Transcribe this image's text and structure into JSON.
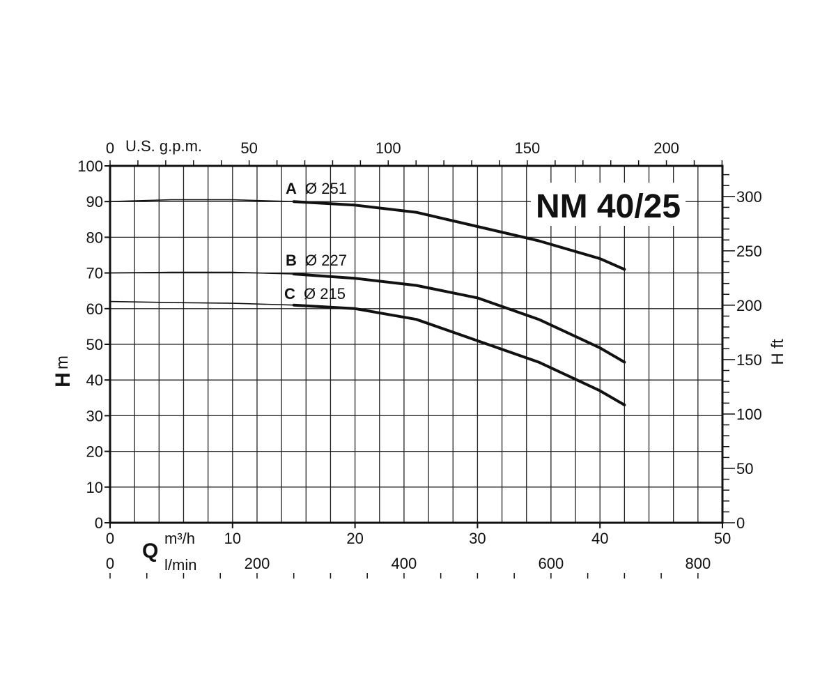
{
  "chart_data": {
    "type": "line",
    "title": "NM 40/25",
    "ylabel_main": "H",
    "ylabel_unit": "m",
    "right_ylabel": "H ft",
    "xlabel_main": "Q",
    "x_unit_m3h": "m³/h",
    "x_unit_lmin": "l/min",
    "top_x_label": "U.S. g.p.m.",
    "xlim": [
      0,
      50
    ],
    "ylim": [
      0,
      100
    ],
    "x_ticks": [
      "0",
      "10",
      "20",
      "30",
      "40",
      "50"
    ],
    "y_ticks": [
      "0",
      "10",
      "20",
      "30",
      "40",
      "50",
      "60",
      "70",
      "80",
      "90",
      "100"
    ],
    "right_ticks": [
      "0",
      "50",
      "100",
      "150",
      "200",
      "250",
      "300"
    ],
    "top_ticks": [
      "0",
      "50",
      "100",
      "150",
      "200"
    ],
    "lmin_ticks": [
      "0",
      "200",
      "400",
      "600",
      "800"
    ],
    "grid": true,
    "series": [
      {
        "name": "A",
        "label": "Ø 251",
        "x": [
          0,
          5,
          10,
          15,
          20,
          25,
          30,
          35,
          40,
          42
        ],
        "y": [
          90,
          90.5,
          90.5,
          90,
          89,
          87,
          83,
          79,
          74,
          71
        ]
      },
      {
        "name": "B",
        "label": "Ø 227",
        "x": [
          0,
          5,
          10,
          15,
          20,
          25,
          30,
          35,
          40,
          42
        ],
        "y": [
          70,
          70.2,
          70.2,
          69.7,
          68.5,
          66.5,
          63,
          57,
          49,
          45
        ]
      },
      {
        "name": "C",
        "label": "Ø 215",
        "x": [
          0,
          5,
          10,
          15,
          20,
          25,
          30,
          35,
          40,
          42
        ],
        "y": [
          62,
          61.7,
          61.5,
          61,
          60,
          57,
          51,
          45,
          37,
          33
        ]
      }
    ]
  }
}
